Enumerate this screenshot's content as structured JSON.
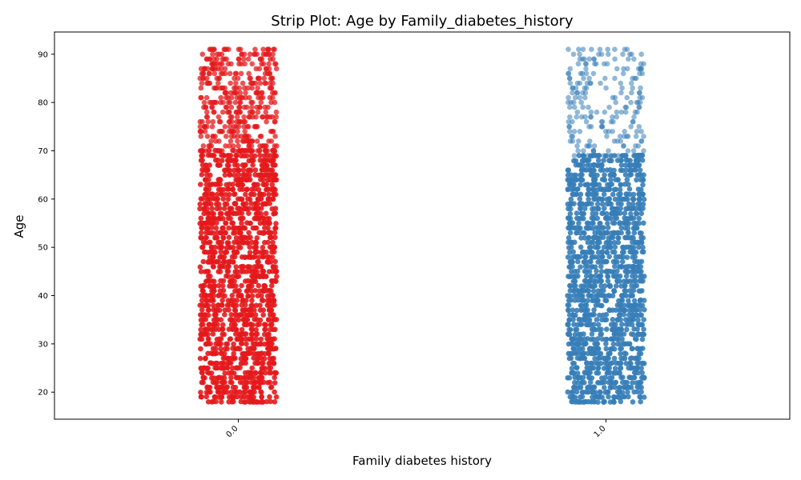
{
  "chart_data": {
    "type": "scatter",
    "subtype": "strip",
    "title": "Strip Plot: Age by Family_diabetes_history",
    "xlabel": "Family diabetes history",
    "ylabel": "Age",
    "categories": [
      "0.0",
      "1.0"
    ],
    "ylim": [
      14.4,
      94.6
    ],
    "yticks": [
      20,
      30,
      40,
      50,
      60,
      70,
      80,
      90
    ],
    "grid": false,
    "legend": "none",
    "series": [
      {
        "category": "0.0",
        "color": "#e41a1c",
        "dense_range": [
          18,
          70
        ],
        "sparse_range": [
          70,
          91
        ]
      },
      {
        "category": "1.0",
        "color": "#377eb8",
        "dense_range": [
          18,
          69
        ],
        "sparse_range": [
          69,
          91
        ]
      }
    ]
  }
}
